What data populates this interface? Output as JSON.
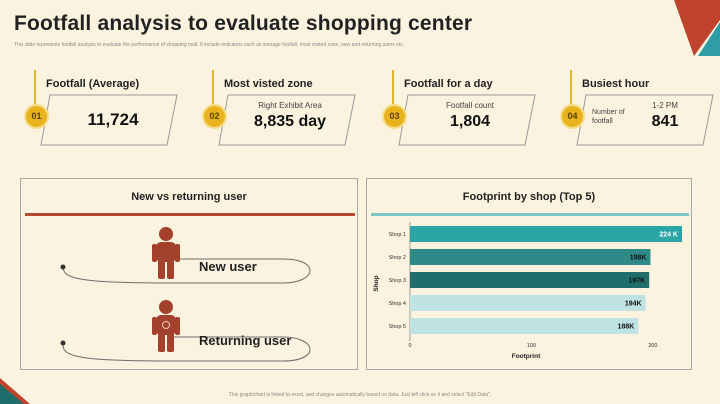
{
  "title": "Footfall analysis to evaluate shopping center",
  "subtitle": "This slide represents footfall analysis to evaluate the performance of shopping mall. It include indicators such as average footfall, most visited zone, new and returning users etc.",
  "kpis": [
    {
      "num": "01",
      "label": "Footfall (Average)",
      "sub": "",
      "value": "11,724"
    },
    {
      "num": "02",
      "label": "Most visted zone",
      "sub": "Right Exhibit Area",
      "value": "8,835 day"
    },
    {
      "num": "03",
      "label": "Footfall for a day",
      "sub": "Footfall count",
      "value": "1,804"
    },
    {
      "num": "04",
      "label": "Busiest hour",
      "sub_left": "Number of footfall",
      "sub": "1-2 PM",
      "value": "841"
    }
  ],
  "users": {
    "title": "New vs returning user",
    "new_label": "New user",
    "returning_label": "Returning user"
  },
  "chart_data": {
    "type": "bar",
    "orientation": "horizontal",
    "title": "Footprint by shop (Top 5)",
    "xlabel": "Footprint",
    "ylabel": "Shop",
    "categories": [
      "Shop 1",
      "Shop 2",
      "Shop 3",
      "Shop 4",
      "Shop 5"
    ],
    "values": [
      224,
      198,
      197,
      194,
      188
    ],
    "data_labels": [
      "224 K",
      "198K",
      "197K",
      "194K",
      "188K"
    ],
    "xlim": [
      0,
      224
    ],
    "xticks": [
      0,
      100,
      200
    ],
    "bar_colors": [
      "#2aa6a4",
      "#2d8a87",
      "#1f6e6b",
      "#bfe3e3",
      "#bfe3e3"
    ]
  },
  "footer": "This graph/chart is linked to excel, and changes automatically based on data. Just left click on it and select \"Edit Data\"."
}
